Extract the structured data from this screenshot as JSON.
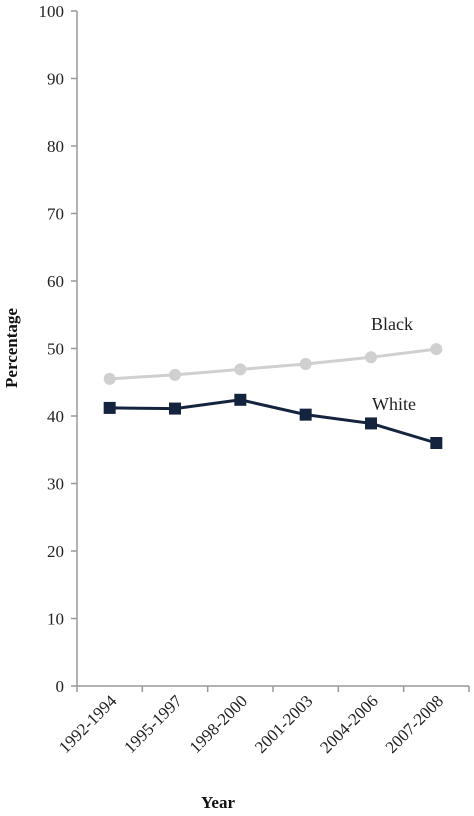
{
  "chart_data": {
    "type": "line",
    "title": "",
    "xlabel": "Year",
    "ylabel": "Percentage",
    "categories": [
      "1992-1994",
      "1995-1997",
      "1998-2000",
      "2001-2003",
      "2004-2006",
      "2007-2008"
    ],
    "ylim": [
      0,
      100
    ],
    "yticks": [
      0,
      10,
      20,
      30,
      40,
      50,
      60,
      70,
      80,
      90,
      100
    ],
    "grid": false,
    "legend": "none",
    "series": [
      {
        "name": "Black",
        "values": [
          45.5,
          46.1,
          46.9,
          47.7,
          48.7,
          49.9
        ],
        "color": "#d0d0d0",
        "marker": "circle"
      },
      {
        "name": "White",
        "values": [
          41.2,
          41.1,
          42.4,
          40.2,
          38.9,
          36.0
        ],
        "color": "#14243f",
        "marker": "square"
      }
    ]
  }
}
